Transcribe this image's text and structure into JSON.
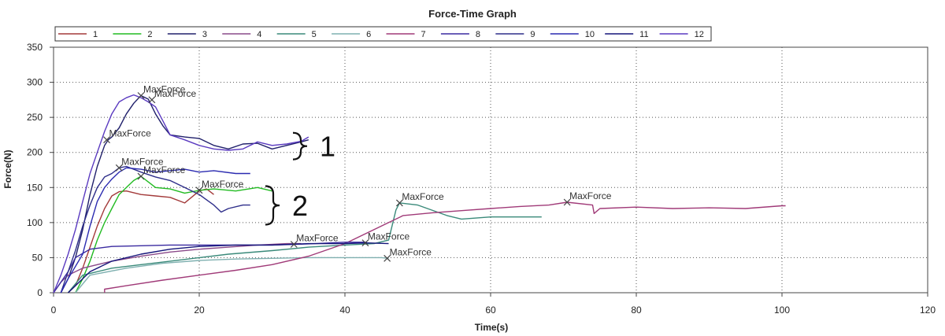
{
  "chart_data": {
    "type": "line",
    "title": "Force-Time Graph",
    "xlabel": "Time(s)",
    "ylabel": "Force(N)",
    "xlim": [
      0,
      120
    ],
    "ylim": [
      0,
      350
    ],
    "x_ticks": [
      0,
      20,
      40,
      60,
      80,
      100,
      120
    ],
    "y_ticks": [
      0,
      50,
      100,
      150,
      200,
      250,
      300,
      350
    ],
    "grid": true,
    "legend_position": "top",
    "series": [
      {
        "name": "1",
        "color": "#a33a3a",
        "points": [
          [
            2,
            0
          ],
          [
            3,
            10
          ],
          [
            4,
            35
          ],
          [
            5,
            65
          ],
          [
            6,
            95
          ],
          [
            7,
            120
          ],
          [
            8,
            138
          ],
          [
            9,
            144
          ],
          [
            10,
            145
          ],
          [
            12,
            140
          ],
          [
            14,
            138
          ],
          [
            16,
            136
          ],
          [
            18,
            128
          ],
          [
            20,
            145
          ],
          [
            21,
            148
          ],
          [
            22,
            140
          ]
        ]
      },
      {
        "name": "2",
        "color": "#22bb22",
        "points": [
          [
            3,
            0
          ],
          [
            4,
            20
          ],
          [
            5,
            45
          ],
          [
            6,
            75
          ],
          [
            7,
            100
          ],
          [
            8,
            120
          ],
          [
            9,
            140
          ],
          [
            10,
            150
          ],
          [
            11,
            160
          ],
          [
            12,
            166
          ],
          [
            13,
            158
          ],
          [
            14,
            150
          ],
          [
            16,
            148
          ],
          [
            18,
            142
          ],
          [
            20,
            146
          ],
          [
            22,
            148
          ],
          [
            25,
            145
          ],
          [
            28,
            150
          ],
          [
            30,
            145
          ]
        ]
      },
      {
        "name": "3",
        "color": "#20206b",
        "points": [
          [
            1,
            0
          ],
          [
            2,
            20
          ],
          [
            3,
            50
          ],
          [
            4,
            90
          ],
          [
            5,
            140
          ],
          [
            6,
            180
          ],
          [
            7,
            210
          ],
          [
            7.5,
            218
          ],
          [
            8,
            222
          ],
          [
            9,
            235
          ],
          [
            10,
            255
          ],
          [
            11,
            270
          ],
          [
            12,
            281
          ],
          [
            13,
            276
          ],
          [
            14,
            255
          ],
          [
            15,
            238
          ],
          [
            16,
            225
          ],
          [
            18,
            222
          ],
          [
            20,
            220
          ],
          [
            22,
            210
          ],
          [
            24,
            205
          ],
          [
            26,
            212
          ],
          [
            28,
            213
          ],
          [
            30,
            205
          ],
          [
            32,
            210
          ],
          [
            34,
            215
          ],
          [
            35,
            218
          ]
        ]
      },
      {
        "name": "4",
        "color": "#8a4a8a",
        "points": [
          [
            0,
            0
          ],
          [
            1,
            15
          ],
          [
            2,
            25
          ],
          [
            4,
            35
          ],
          [
            8,
            45
          ],
          [
            12,
            52
          ],
          [
            16,
            58
          ],
          [
            20,
            62
          ],
          [
            24,
            65
          ],
          [
            28,
            68
          ],
          [
            32,
            70
          ],
          [
            34,
            70
          ]
        ]
      },
      {
        "name": "5",
        "color": "#3a8a7a",
        "points": [
          [
            2,
            0
          ],
          [
            4,
            25
          ],
          [
            8,
            35
          ],
          [
            12,
            40
          ],
          [
            16,
            45
          ],
          [
            20,
            50
          ],
          [
            24,
            55
          ],
          [
            30,
            60
          ],
          [
            35,
            65
          ],
          [
            40,
            68
          ],
          [
            44,
            70
          ],
          [
            46,
            75
          ],
          [
            47,
            118
          ],
          [
            47.5,
            128
          ],
          [
            50,
            125
          ],
          [
            54,
            110
          ],
          [
            56,
            105
          ],
          [
            60,
            108
          ],
          [
            65,
            108
          ],
          [
            67,
            108
          ]
        ]
      },
      {
        "name": "6",
        "color": "#7fb0b0",
        "points": [
          [
            3,
            0
          ],
          [
            5,
            25
          ],
          [
            10,
            35
          ],
          [
            15,
            42
          ],
          [
            20,
            46
          ],
          [
            25,
            48
          ],
          [
            30,
            49
          ],
          [
            35,
            50
          ],
          [
            40,
            50
          ],
          [
            45,
            50
          ],
          [
            46,
            49
          ]
        ]
      },
      {
        "name": "7",
        "color": "#a03a78",
        "points": [
          [
            7,
            0
          ],
          [
            7,
            5
          ],
          [
            10,
            10
          ],
          [
            15,
            18
          ],
          [
            20,
            25
          ],
          [
            25,
            32
          ],
          [
            30,
            40
          ],
          [
            35,
            52
          ],
          [
            40,
            70
          ],
          [
            45,
            95
          ],
          [
            48,
            110
          ],
          [
            52,
            114
          ],
          [
            56,
            117
          ],
          [
            60,
            120
          ],
          [
            64,
            123
          ],
          [
            68,
            125
          ],
          [
            70.5,
            129
          ],
          [
            74,
            125
          ],
          [
            74.2,
            113
          ],
          [
            75,
            120
          ],
          [
            80,
            122
          ],
          [
            85,
            120
          ],
          [
            90,
            121
          ],
          [
            95,
            120
          ],
          [
            100,
            124
          ],
          [
            100.5,
            124
          ]
        ]
      },
      {
        "name": "8",
        "color": "#3a2aa0",
        "points": [
          [
            0,
            0
          ],
          [
            1,
            15
          ],
          [
            2,
            30
          ],
          [
            3,
            50
          ],
          [
            5,
            62
          ],
          [
            8,
            66
          ],
          [
            12,
            67
          ],
          [
            16,
            68
          ],
          [
            20,
            68
          ],
          [
            25,
            68
          ],
          [
            30,
            68
          ],
          [
            33,
            69
          ],
          [
            36,
            70
          ],
          [
            40,
            72
          ],
          [
            43,
            72
          ]
        ]
      },
      {
        "name": "9",
        "color": "#2e2e8a",
        "points": [
          [
            1,
            0
          ],
          [
            2,
            30
          ],
          [
            3,
            60
          ],
          [
            4,
            95
          ],
          [
            5,
            125
          ],
          [
            6,
            150
          ],
          [
            7,
            165
          ],
          [
            8,
            170
          ],
          [
            9,
            178
          ],
          [
            10,
            180
          ],
          [
            12,
            172
          ],
          [
            14,
            165
          ],
          [
            16,
            160
          ],
          [
            18,
            150
          ],
          [
            20,
            140
          ],
          [
            22,
            125
          ],
          [
            23,
            115
          ],
          [
            24,
            120
          ],
          [
            26,
            125
          ],
          [
            27,
            125
          ]
        ]
      },
      {
        "name": "10",
        "color": "#2a2ab0",
        "points": [
          [
            1,
            0
          ],
          [
            2,
            20
          ],
          [
            4,
            55
          ],
          [
            5,
            95
          ],
          [
            6,
            130
          ],
          [
            7,
            150
          ],
          [
            8,
            162
          ],
          [
            9,
            172
          ],
          [
            10,
            178
          ],
          [
            12,
            176
          ],
          [
            14,
            172
          ],
          [
            16,
            174
          ],
          [
            18,
            176
          ],
          [
            20,
            172
          ],
          [
            22,
            174
          ],
          [
            25,
            170
          ],
          [
            27,
            170
          ]
        ]
      },
      {
        "name": "11",
        "color": "#15157a",
        "points": [
          [
            2,
            0
          ],
          [
            3,
            10
          ],
          [
            5,
            30
          ],
          [
            8,
            45
          ],
          [
            12,
            55
          ],
          [
            16,
            62
          ],
          [
            20,
            66
          ],
          [
            25,
            68
          ],
          [
            30,
            68
          ],
          [
            35,
            70
          ],
          [
            40,
            70
          ],
          [
            43,
            71
          ],
          [
            46,
            70
          ]
        ]
      },
      {
        "name": "12",
        "color": "#5a3ac0",
        "points": [
          [
            0,
            0
          ],
          [
            1,
            25
          ],
          [
            2,
            55
          ],
          [
            3,
            90
          ],
          [
            4,
            130
          ],
          [
            5,
            170
          ],
          [
            6,
            200
          ],
          [
            7,
            230
          ],
          [
            8,
            255
          ],
          [
            9,
            272
          ],
          [
            10,
            278
          ],
          [
            11,
            282
          ],
          [
            12,
            278
          ],
          [
            13,
            272
          ],
          [
            14,
            265
          ],
          [
            15,
            245
          ],
          [
            16,
            225
          ],
          [
            18,
            218
          ],
          [
            20,
            210
          ],
          [
            22,
            205
          ],
          [
            24,
            203
          ],
          [
            26,
            205
          ],
          [
            28,
            215
          ],
          [
            30,
            210
          ],
          [
            32,
            212
          ],
          [
            34,
            216
          ],
          [
            35,
            222
          ]
        ]
      }
    ],
    "max_force_markers": [
      {
        "label": "MaxForce",
        "x": 12,
        "y": 281
      },
      {
        "label": "MaxForce",
        "x": 13.5,
        "y": 275
      },
      {
        "label": "MaxForce",
        "x": 7.3,
        "y": 218
      },
      {
        "label": "MaxForce",
        "x": 9,
        "y": 178
      },
      {
        "label": "MaxForce",
        "x": 12,
        "y": 166
      },
      {
        "label": "MaxForce",
        "x": 20,
        "y": 146
      },
      {
        "label": "MaxForce",
        "x": 47.5,
        "y": 128
      },
      {
        "label": "MaxForce",
        "x": 70.5,
        "y": 129
      },
      {
        "label": "MaxForce",
        "x": 33,
        "y": 69
      },
      {
        "label": "MaxForce",
        "x": 42.8,
        "y": 71
      },
      {
        "label": "MaxForce",
        "x": 45.8,
        "y": 49
      }
    ],
    "annotations": [
      {
        "text": "1",
        "bracket_y_range": [
          190,
          228
        ]
      },
      {
        "text": "2",
        "bracket_y_range": [
          97,
          152
        ]
      }
    ]
  }
}
